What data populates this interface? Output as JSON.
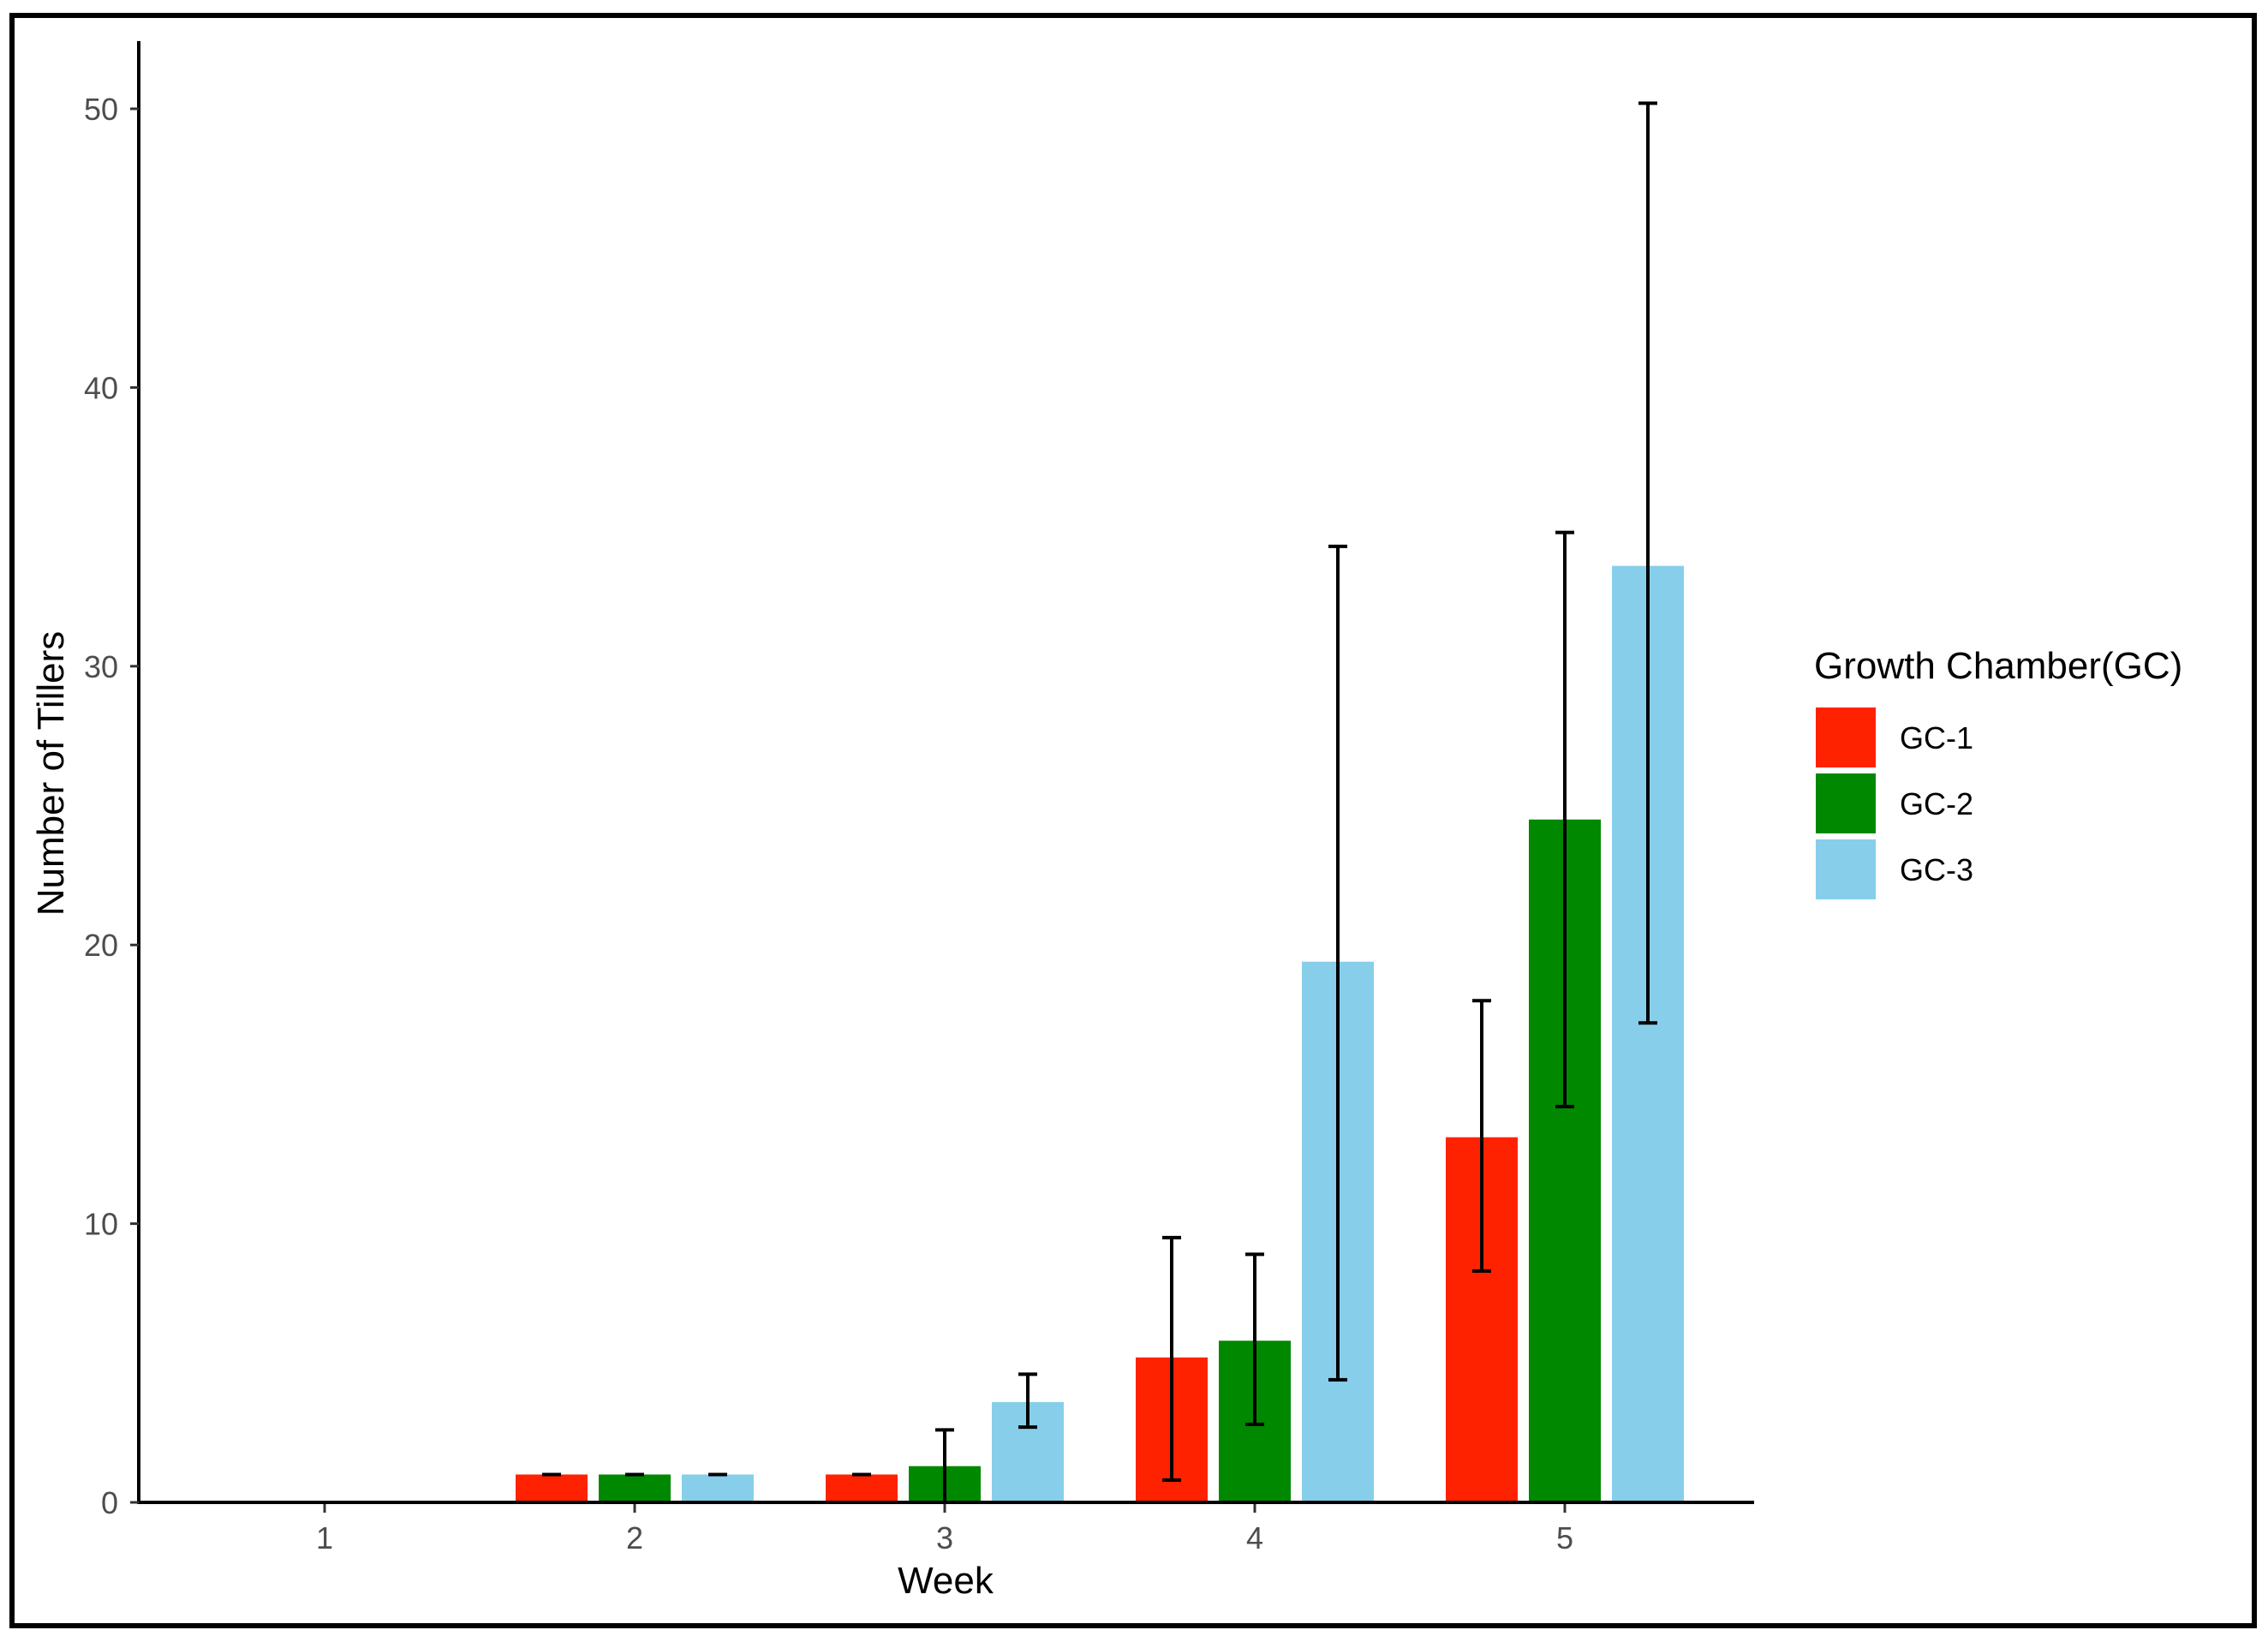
{
  "chart_data": {
    "type": "bar",
    "categories": [
      "1",
      "2",
      "3",
      "4",
      "5"
    ],
    "xlabel": "Week",
    "ylabel": "Number of Tillers",
    "ylim": [
      0,
      52.5
    ],
    "yticks": [
      0,
      10,
      20,
      30,
      40,
      50
    ],
    "grid": false,
    "legend": {
      "title": "Growth Chamber(GC)",
      "placement": "right"
    },
    "series": [
      {
        "name": "GC-1",
        "color": "#ff2200",
        "values": [
          0,
          1,
          1,
          5.2,
          13.1
        ],
        "error_low": [
          0,
          1,
          1,
          0.8,
          8.3
        ],
        "error_high": [
          0,
          1,
          1,
          9.5,
          18.0
        ]
      },
      {
        "name": "GC-2",
        "color": "#008800",
        "values": [
          0,
          1,
          1.3,
          5.8,
          24.5
        ],
        "error_low": [
          0,
          1,
          0,
          2.8,
          14.2
        ],
        "error_high": [
          0,
          1,
          2.6,
          8.9,
          34.8
        ]
      },
      {
        "name": "GC-3",
        "color": "#87ceeb",
        "values": [
          0,
          1,
          3.6,
          19.4,
          33.6
        ],
        "error_low": [
          0,
          1,
          2.7,
          4.4,
          17.2
        ],
        "error_high": [
          0,
          1,
          4.6,
          34.3,
          50.2
        ]
      }
    ]
  }
}
